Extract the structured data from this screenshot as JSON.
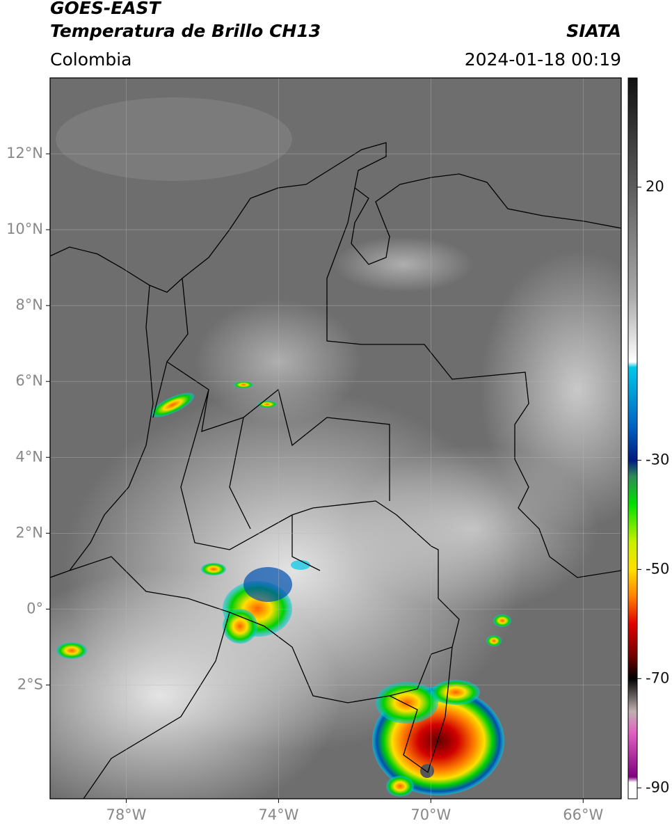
{
  "header": {
    "title": "GOES-EAST",
    "subtitle": "Temperatura de Brillo CH13",
    "source": "SIATA",
    "region": "Colombia",
    "datetime": "2024-01-18 00:19"
  },
  "map": {
    "xlim": [
      -80,
      -65
    ],
    "ylim": [
      -5,
      14
    ],
    "grid": true,
    "xticks": [
      {
        "value": -78,
        "label": "78°W"
      },
      {
        "value": -74,
        "label": "74°W"
      },
      {
        "value": -70,
        "label": "70°W"
      },
      {
        "value": -66,
        "label": "66°W"
      }
    ],
    "yticks": [
      {
        "value": 12,
        "label": "12°N"
      },
      {
        "value": 10,
        "label": "10°N"
      },
      {
        "value": 8,
        "label": "8°N"
      },
      {
        "value": 6,
        "label": "6°N"
      },
      {
        "value": 4,
        "label": "4°N"
      },
      {
        "value": 2,
        "label": "2°N"
      },
      {
        "value": 0,
        "label": "0°"
      },
      {
        "value": -2,
        "label": "2°S"
      }
    ]
  },
  "colorbar": {
    "lim": [
      -92,
      40
    ],
    "ticks": [
      20,
      -30,
      -50,
      -70,
      -90
    ],
    "colormap": [
      {
        "value": 40,
        "color": "#111111"
      },
      {
        "value": 20,
        "color": "#5c5c5c"
      },
      {
        "value": 0,
        "color": "#aaaaaa"
      },
      {
        "value": -12,
        "color": "#ffffff"
      },
      {
        "value": -13,
        "color": "#00c8e8"
      },
      {
        "value": -24,
        "color": "#0060c0"
      },
      {
        "value": -30,
        "color": "#001a80"
      },
      {
        "value": -33,
        "color": "#2e8b57"
      },
      {
        "value": -38,
        "color": "#00e000"
      },
      {
        "value": -45,
        "color": "#c8f000"
      },
      {
        "value": -50,
        "color": "#ffe000"
      },
      {
        "value": -55,
        "color": "#ff8000"
      },
      {
        "value": -60,
        "color": "#e00000"
      },
      {
        "value": -66,
        "color": "#700000"
      },
      {
        "value": -70,
        "color": "#000000"
      },
      {
        "value": -76,
        "color": "#c0b0b0"
      },
      {
        "value": -80,
        "color": "#e060c0"
      },
      {
        "value": -88,
        "color": "#800080"
      },
      {
        "value": -89,
        "color": "#ffffff"
      },
      {
        "value": -92,
        "color": "#ffffff"
      }
    ]
  }
}
